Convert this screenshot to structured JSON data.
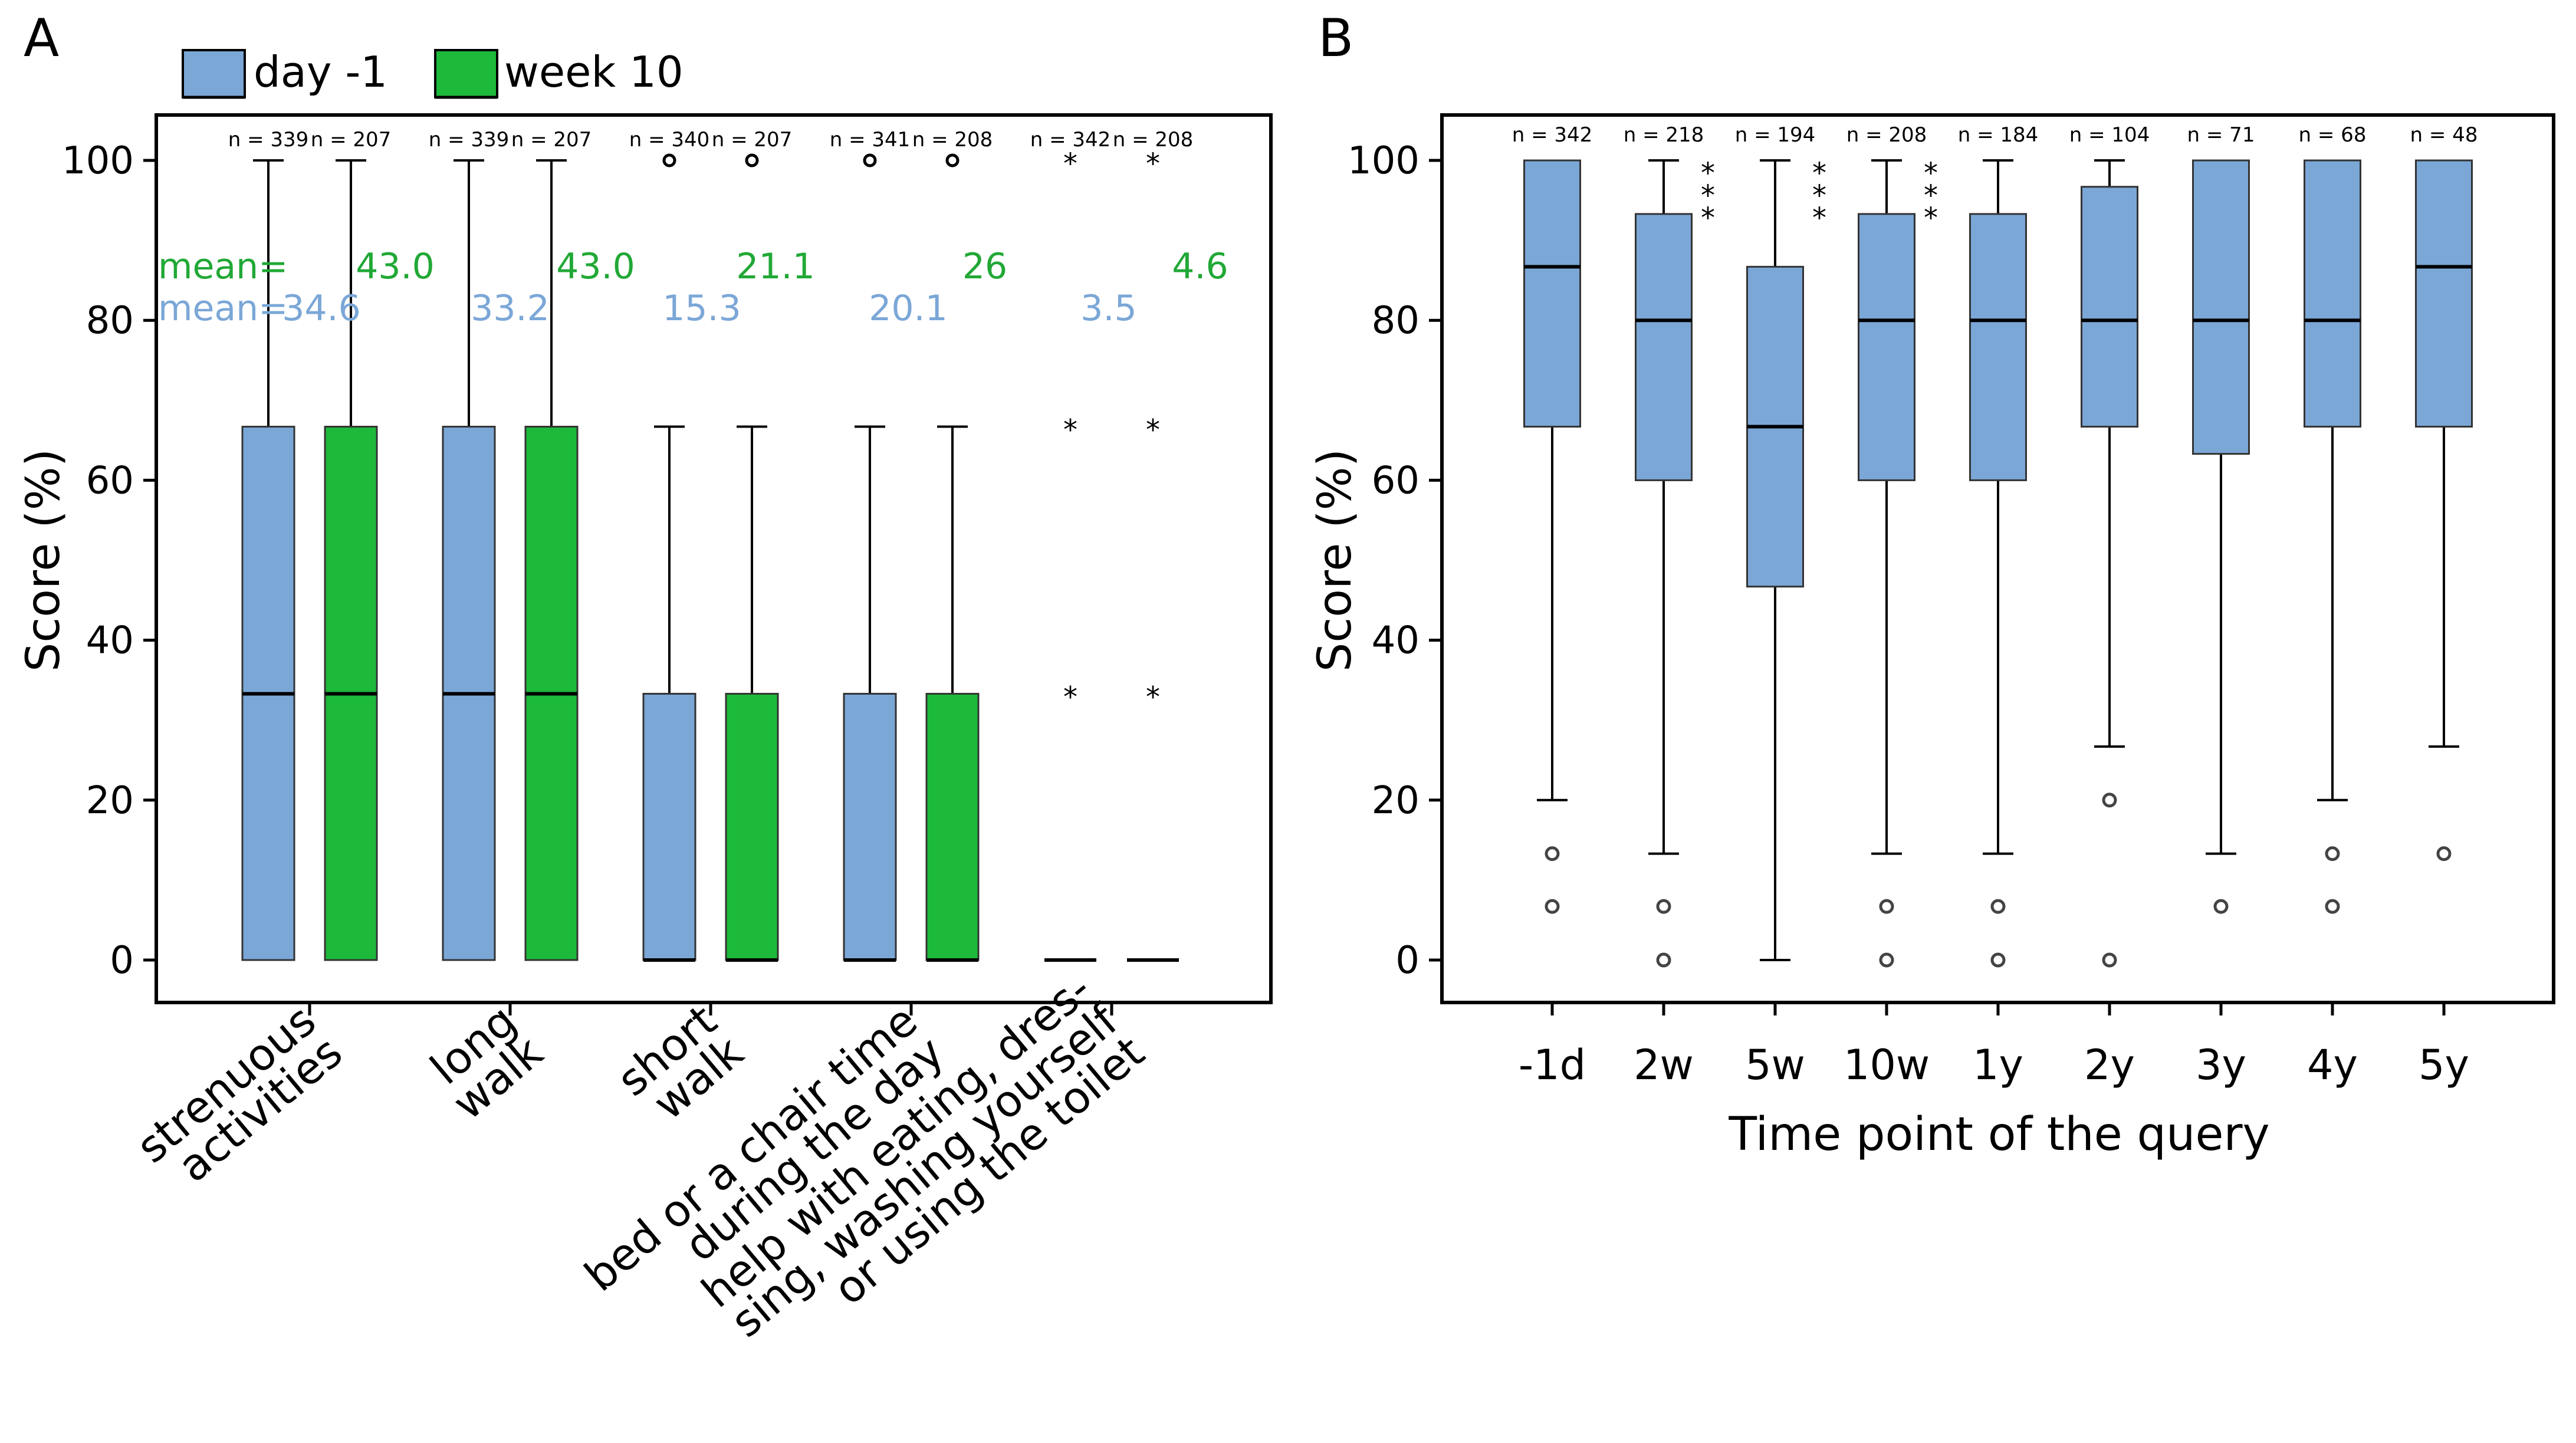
{
  "chart_data": [
    {
      "panel": "A",
      "type": "box",
      "ylabel": "Score (%)",
      "ylim": [
        0,
        100
      ],
      "yticks": [
        0,
        20,
        40,
        60,
        80,
        100
      ],
      "legend": [
        {
          "name": "day -1",
          "color": "#7ba7d7"
        },
        {
          "name": "week 10",
          "color": "#1db93b"
        }
      ],
      "mean_prefix": "mean=",
      "categories": [
        {
          "lines": [
            "strenuous",
            "activities"
          ],
          "groups": [
            {
              "series": "day -1",
              "n": "n = 339",
              "mean": "34.6",
              "whisker_low": 0,
              "q1": 0,
              "median": 33.3,
              "q3": 66.7,
              "whisker_high": 100,
              "outliers": []
            },
            {
              "series": "week 10",
              "n": "n = 207",
              "mean": "43.0",
              "whisker_low": 0,
              "q1": 0,
              "median": 33.3,
              "q3": 66.7,
              "whisker_high": 100,
              "outliers": []
            }
          ]
        },
        {
          "lines": [
            "long",
            "walk"
          ],
          "groups": [
            {
              "series": "day -1",
              "n": "n = 339",
              "mean": "33.2",
              "whisker_low": 0,
              "q1": 0,
              "median": 33.3,
              "q3": 66.7,
              "whisker_high": 100,
              "outliers": []
            },
            {
              "series": "week 10",
              "n": "n = 207",
              "mean": "43.0",
              "whisker_low": 0,
              "q1": 0,
              "median": 33.3,
              "q3": 66.7,
              "whisker_high": 100,
              "outliers": []
            }
          ]
        },
        {
          "lines": [
            "short",
            "walk"
          ],
          "groups": [
            {
              "series": "day -1",
              "n": "n = 340",
              "mean": "15.3",
              "whisker_low": 0,
              "q1": 0,
              "median": 0,
              "q3": 33.3,
              "whisker_high": 66.7,
              "outliers": [
                100
              ]
            },
            {
              "series": "week 10",
              "n": "n = 207",
              "mean": "21.1",
              "whisker_low": 0,
              "q1": 0,
              "median": 0,
              "q3": 33.3,
              "whisker_high": 66.7,
              "outliers": [
                100
              ]
            }
          ]
        },
        {
          "lines": [
            "bed or a chair time",
            "during the day"
          ],
          "groups": [
            {
              "series": "day -1",
              "n": "n = 341",
              "mean": "20.1",
              "whisker_low": 0,
              "q1": 0,
              "median": 0,
              "q3": 33.3,
              "whisker_high": 66.7,
              "outliers": [
                100
              ]
            },
            {
              "series": "week 10",
              "n": "n = 208",
              "mean": "26",
              "whisker_low": 0,
              "q1": 0,
              "median": 0,
              "q3": 33.3,
              "whisker_high": 66.7,
              "outliers": [
                100
              ]
            }
          ]
        },
        {
          "lines": [
            "help with eating, dres-",
            "sing, washing yourself",
            "or using the toilet"
          ],
          "groups": [
            {
              "series": "day -1",
              "n": "n = 342",
              "mean": "3.5",
              "whisker_low": 0,
              "q1": 0,
              "median": 0,
              "q3": 0,
              "whisker_high": 0,
              "extremes": [
                33.3,
                66.7,
                100
              ]
            },
            {
              "series": "week 10",
              "n": "n = 208",
              "mean": "4.6",
              "whisker_low": 0,
              "q1": 0,
              "median": 0,
              "q3": 0,
              "whisker_high": 0,
              "extremes": [
                33.3,
                66.7,
                100
              ]
            }
          ]
        }
      ]
    },
    {
      "panel": "B",
      "type": "box",
      "xlabel": "Time point of the query",
      "ylabel": "Score (%)",
      "ylim": [
        0,
        100
      ],
      "yticks": [
        0,
        20,
        40,
        60,
        80,
        100
      ],
      "color": "#7ba7d7",
      "groups": [
        {
          "label": "-1d",
          "n": "n = 342",
          "whisker_low": 20,
          "q1": 66.7,
          "median": 86.7,
          "q3": 100,
          "whisker_high": 100,
          "outliers": [
            13.3,
            6.7
          ],
          "sig": ""
        },
        {
          "label": "2w",
          "n": "n = 218",
          "whisker_low": 13.3,
          "q1": 60,
          "median": 80,
          "q3": 93.3,
          "whisker_high": 100,
          "outliers": [
            6.7,
            0
          ],
          "sig": "***"
        },
        {
          "label": "5w",
          "n": "n = 194",
          "whisker_low": 0,
          "q1": 46.7,
          "median": 66.7,
          "q3": 86.7,
          "whisker_high": 100,
          "outliers": [],
          "sig": "***"
        },
        {
          "label": "10w",
          "n": "n = 208",
          "whisker_low": 13.3,
          "q1": 60,
          "median": 80,
          "q3": 93.3,
          "whisker_high": 100,
          "outliers": [
            6.7,
            0
          ],
          "sig": "***"
        },
        {
          "label": "1y",
          "n": "n = 184",
          "whisker_low": 13.3,
          "q1": 60,
          "median": 80,
          "q3": 93.3,
          "whisker_high": 100,
          "outliers": [
            6.7,
            0
          ],
          "sig": ""
        },
        {
          "label": "2y",
          "n": "n = 104",
          "whisker_low": 26.7,
          "q1": 66.7,
          "median": 80,
          "q3": 96.7,
          "whisker_high": 100,
          "outliers": [
            20,
            0
          ],
          "sig": ""
        },
        {
          "label": "3y",
          "n": "n = 71",
          "whisker_low": 13.3,
          "q1": 63.3,
          "median": 80,
          "q3": 100,
          "whisker_high": 100,
          "outliers": [
            6.7
          ],
          "sig": ""
        },
        {
          "label": "4y",
          "n": "n = 68",
          "whisker_low": 20,
          "q1": 66.7,
          "median": 80,
          "q3": 100,
          "whisker_high": 100,
          "outliers": [
            13.3,
            6.7
          ],
          "sig": ""
        },
        {
          "label": "5y",
          "n": "n = 48",
          "whisker_low": 26.7,
          "q1": 66.7,
          "median": 86.7,
          "q3": 100,
          "whisker_high": 100,
          "outliers": [
            13.3
          ],
          "sig": ""
        }
      ]
    }
  ]
}
